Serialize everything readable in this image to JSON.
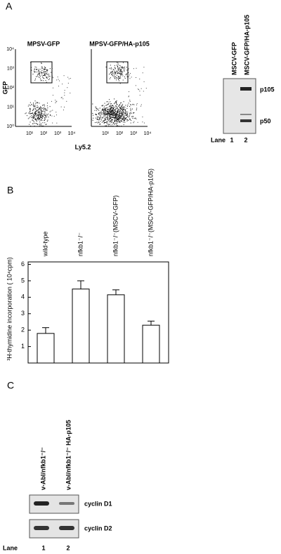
{
  "panel_a": {
    "label": "A",
    "flow_plots": [
      {
        "title": "MPSV-GFP"
      },
      {
        "title": "MPSV-GFP/HA-p105"
      }
    ],
    "y_axis_label": "GFP",
    "x_axis_label": "Ly5.2",
    "log_ticks": [
      "10⁰",
      "10¹",
      "10²",
      "10³",
      "10⁴"
    ],
    "blot": {
      "lanes": [
        "MSCV-GFP",
        "MSCV-GFP/HA-p105"
      ],
      "bands": [
        "p105",
        "p50"
      ],
      "lane_label": "Lane",
      "lane_numbers": [
        "1",
        "2"
      ]
    }
  },
  "chart_data": {
    "type": "bar",
    "panel_label": "B",
    "y_label": "³H-thymidine incorporation ( 10⁴cpm)",
    "categories": [
      "wild-type",
      "nfkb1⁻/⁻",
      "nfkb1⁻/⁻(MSCV-GFP)",
      "nfkb1⁻/⁻(MSCV-GFP/HA-p105)"
    ],
    "values": [
      1.8,
      4.5,
      4.15,
      2.3
    ],
    "errors": [
      0.35,
      0.5,
      0.3,
      0.25
    ],
    "color": "#ffffff",
    "ylim": [
      0,
      6.15
    ],
    "yticks": [
      1,
      2,
      3,
      4,
      5,
      6
    ]
  },
  "panel_c": {
    "label": "C",
    "lanes": [
      "v-Abl/nfkb1⁻/⁻",
      "v-Abl/nfkb1⁻/⁻ HA-p105"
    ],
    "bands": [
      "cyclin D1",
      "cyclin D2"
    ],
    "lane_label": "Lane",
    "lane_numbers": [
      "1",
      "2"
    ]
  }
}
